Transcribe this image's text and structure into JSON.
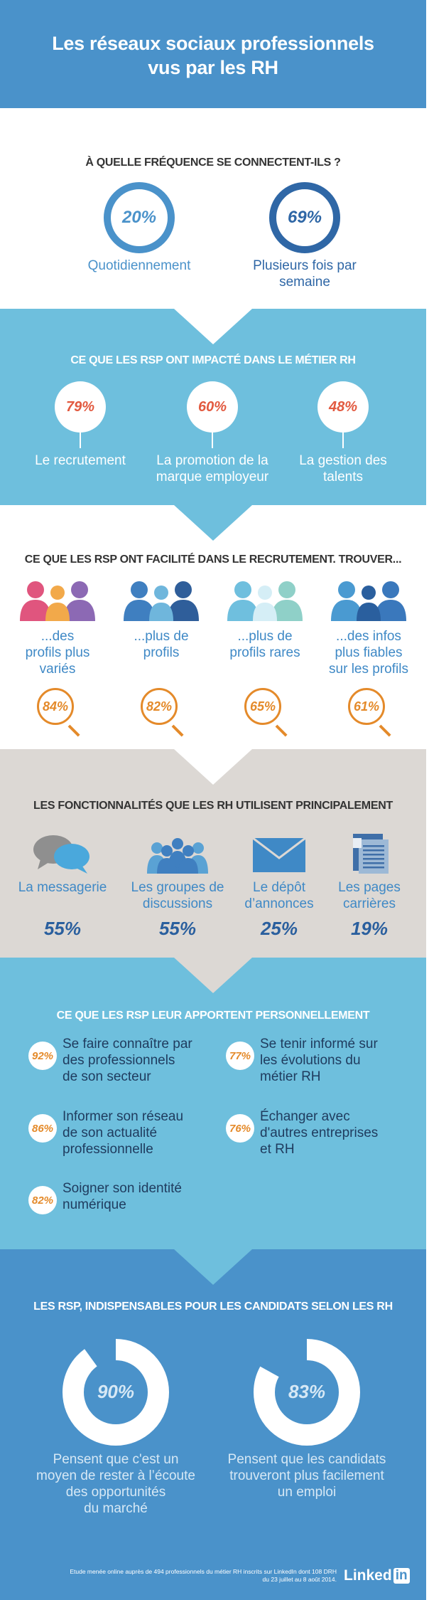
{
  "header": {
    "title_line1": "Les réseaux sociaux professionnels",
    "title_line2": "vus par les RH"
  },
  "frequency": {
    "title": "À QUELLE FRÉQUENCE SE CONNECTENT-ILS ?",
    "items": [
      {
        "value": "20%",
        "label": "Quotidiennement"
      },
      {
        "value": "69%",
        "label_line1": "Plusieurs fois par",
        "label_line2": "semaine"
      }
    ]
  },
  "impact": {
    "title": "CE QUE LES RSP ONT IMPACTÉ DANS LE MÉTIER RH",
    "items": [
      {
        "value": "79%",
        "label_line1": "Le recrutement",
        "label_line2": ""
      },
      {
        "value": "60%",
        "label_line1": "La promotion de la",
        "label_line2": "marque employeur"
      },
      {
        "value": "48%",
        "label_line1": "La gestion des",
        "label_line2": "talents"
      }
    ]
  },
  "recruitment": {
    "title": "CE QUE LES RSP ONT FACILITÉ DANS LE RECRUTEMENT. TROUVER...",
    "items": [
      {
        "icon": "people-group-icon",
        "lines": [
          "...des",
          "profils plus",
          "variés"
        ],
        "value": "84%"
      },
      {
        "icon": "people-group-icon",
        "lines": [
          "...plus de",
          "profils"
        ],
        "value": "82%"
      },
      {
        "icon": "people-group-icon",
        "lines": [
          "...plus de",
          "profils rares"
        ],
        "value": "65%"
      },
      {
        "icon": "people-group-icon",
        "lines": [
          "...des infos",
          "plus fiables",
          "sur les profils"
        ],
        "value": "61%"
      }
    ]
  },
  "features": {
    "title": "LES FONCTIONNALITÉS QUE LES RH UTILISENT PRINCIPALEMENT",
    "items": [
      {
        "icon": "chat-bubbles-icon",
        "lines": [
          "La messagerie"
        ],
        "value": "55%"
      },
      {
        "icon": "group-icon",
        "lines": [
          "Les groupes de",
          "discussions"
        ],
        "value": "55%"
      },
      {
        "icon": "envelope-icon",
        "lines": [
          "Le dépôt",
          "d’annonces"
        ],
        "value": "25%"
      },
      {
        "icon": "pages-icon",
        "lines": [
          "Les pages",
          "carrières"
        ],
        "value": "19%"
      }
    ]
  },
  "personal": {
    "title": "CE QUE LES RSP LEUR APPORTENT PERSONNELLEMENT",
    "items": [
      {
        "value": "92%",
        "lines": [
          "Se faire connaître par",
          "des professionnels",
          "de son secteur"
        ]
      },
      {
        "value": "77%",
        "lines": [
          "Se tenir informé sur",
          "les évolutions du",
          "métier RH"
        ]
      },
      {
        "value": "86%",
        "lines": [
          "Informer son réseau",
          "de son actualité",
          "professionnelle"
        ]
      },
      {
        "value": "76%",
        "lines": [
          "Échanger avec",
          "d'autres entreprises",
          "et RH"
        ]
      },
      {
        "value": "82%",
        "lines": [
          "Soigner son identité",
          "numérique"
        ]
      }
    ]
  },
  "candidates": {
    "title": "LES RSP, INDISPENSABLES POUR LES CANDIDATS SELON LES RH",
    "items": [
      {
        "value": "90%",
        "fraction": 0.9,
        "lines": [
          "Pensent que c'est un",
          "moyen de rester à l’écoute",
          "des opportunités",
          "du marché"
        ]
      },
      {
        "value": "83%",
        "fraction": 0.83,
        "lines": [
          "Pensent que les candidats",
          "trouveront plus facilement",
          "un emploi"
        ]
      }
    ]
  },
  "footer": {
    "note_line1": "Etude menée online auprès de 494 professionnels du métier RH inscrits sur LinkedIn dont 108 DRH",
    "note_line2": "du 23 juillet au 8 août 2014.",
    "logo_text": "Linked",
    "logo_in": "in"
  },
  "colors": {
    "dark_blue": "#3f89c6",
    "navy": "#2a5f9e",
    "light_blue": "#6fc0de",
    "grey": "#dcd8d4",
    "orange": "#e48a2a",
    "red": "#e2593f"
  }
}
